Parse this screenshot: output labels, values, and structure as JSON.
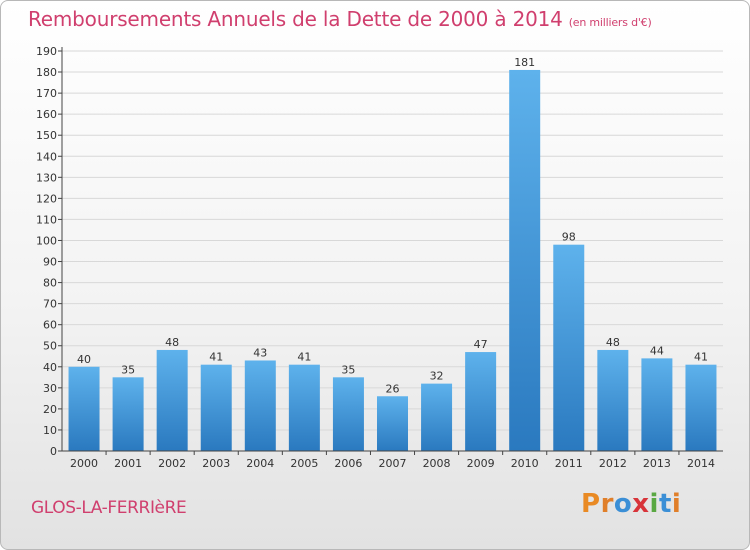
{
  "title": "Remboursements Annuels de la Dette de 2000 à 2014",
  "unit": "(en milliers d'€)",
  "commune": "GLOS-LA-FERRIèRE",
  "logo": {
    "text": "Proxiti",
    "letter_colors": [
      "#e98a24",
      "#e07f2a",
      "#3b8fd6",
      "#d8343a",
      "#5aa843",
      "#3b8fd6",
      "#e07f2a"
    ]
  },
  "colors": {
    "bar_top": "#5eb2ec",
    "bar_bottom": "#2a79bf",
    "title": "#d03f6e",
    "grid": "#d8d8d8",
    "axis": "#444444"
  },
  "chart_data": {
    "type": "bar",
    "categories": [
      "2000",
      "2001",
      "2002",
      "2003",
      "2004",
      "2005",
      "2006",
      "2007",
      "2008",
      "2009",
      "2010",
      "2011",
      "2012",
      "2013",
      "2014"
    ],
    "values": [
      40,
      35,
      48,
      41,
      43,
      41,
      35,
      26,
      32,
      47,
      181,
      98,
      48,
      44,
      41
    ],
    "ylim": [
      0,
      190
    ],
    "ytick_step": 10,
    "grid": true,
    "data_labels": true
  }
}
